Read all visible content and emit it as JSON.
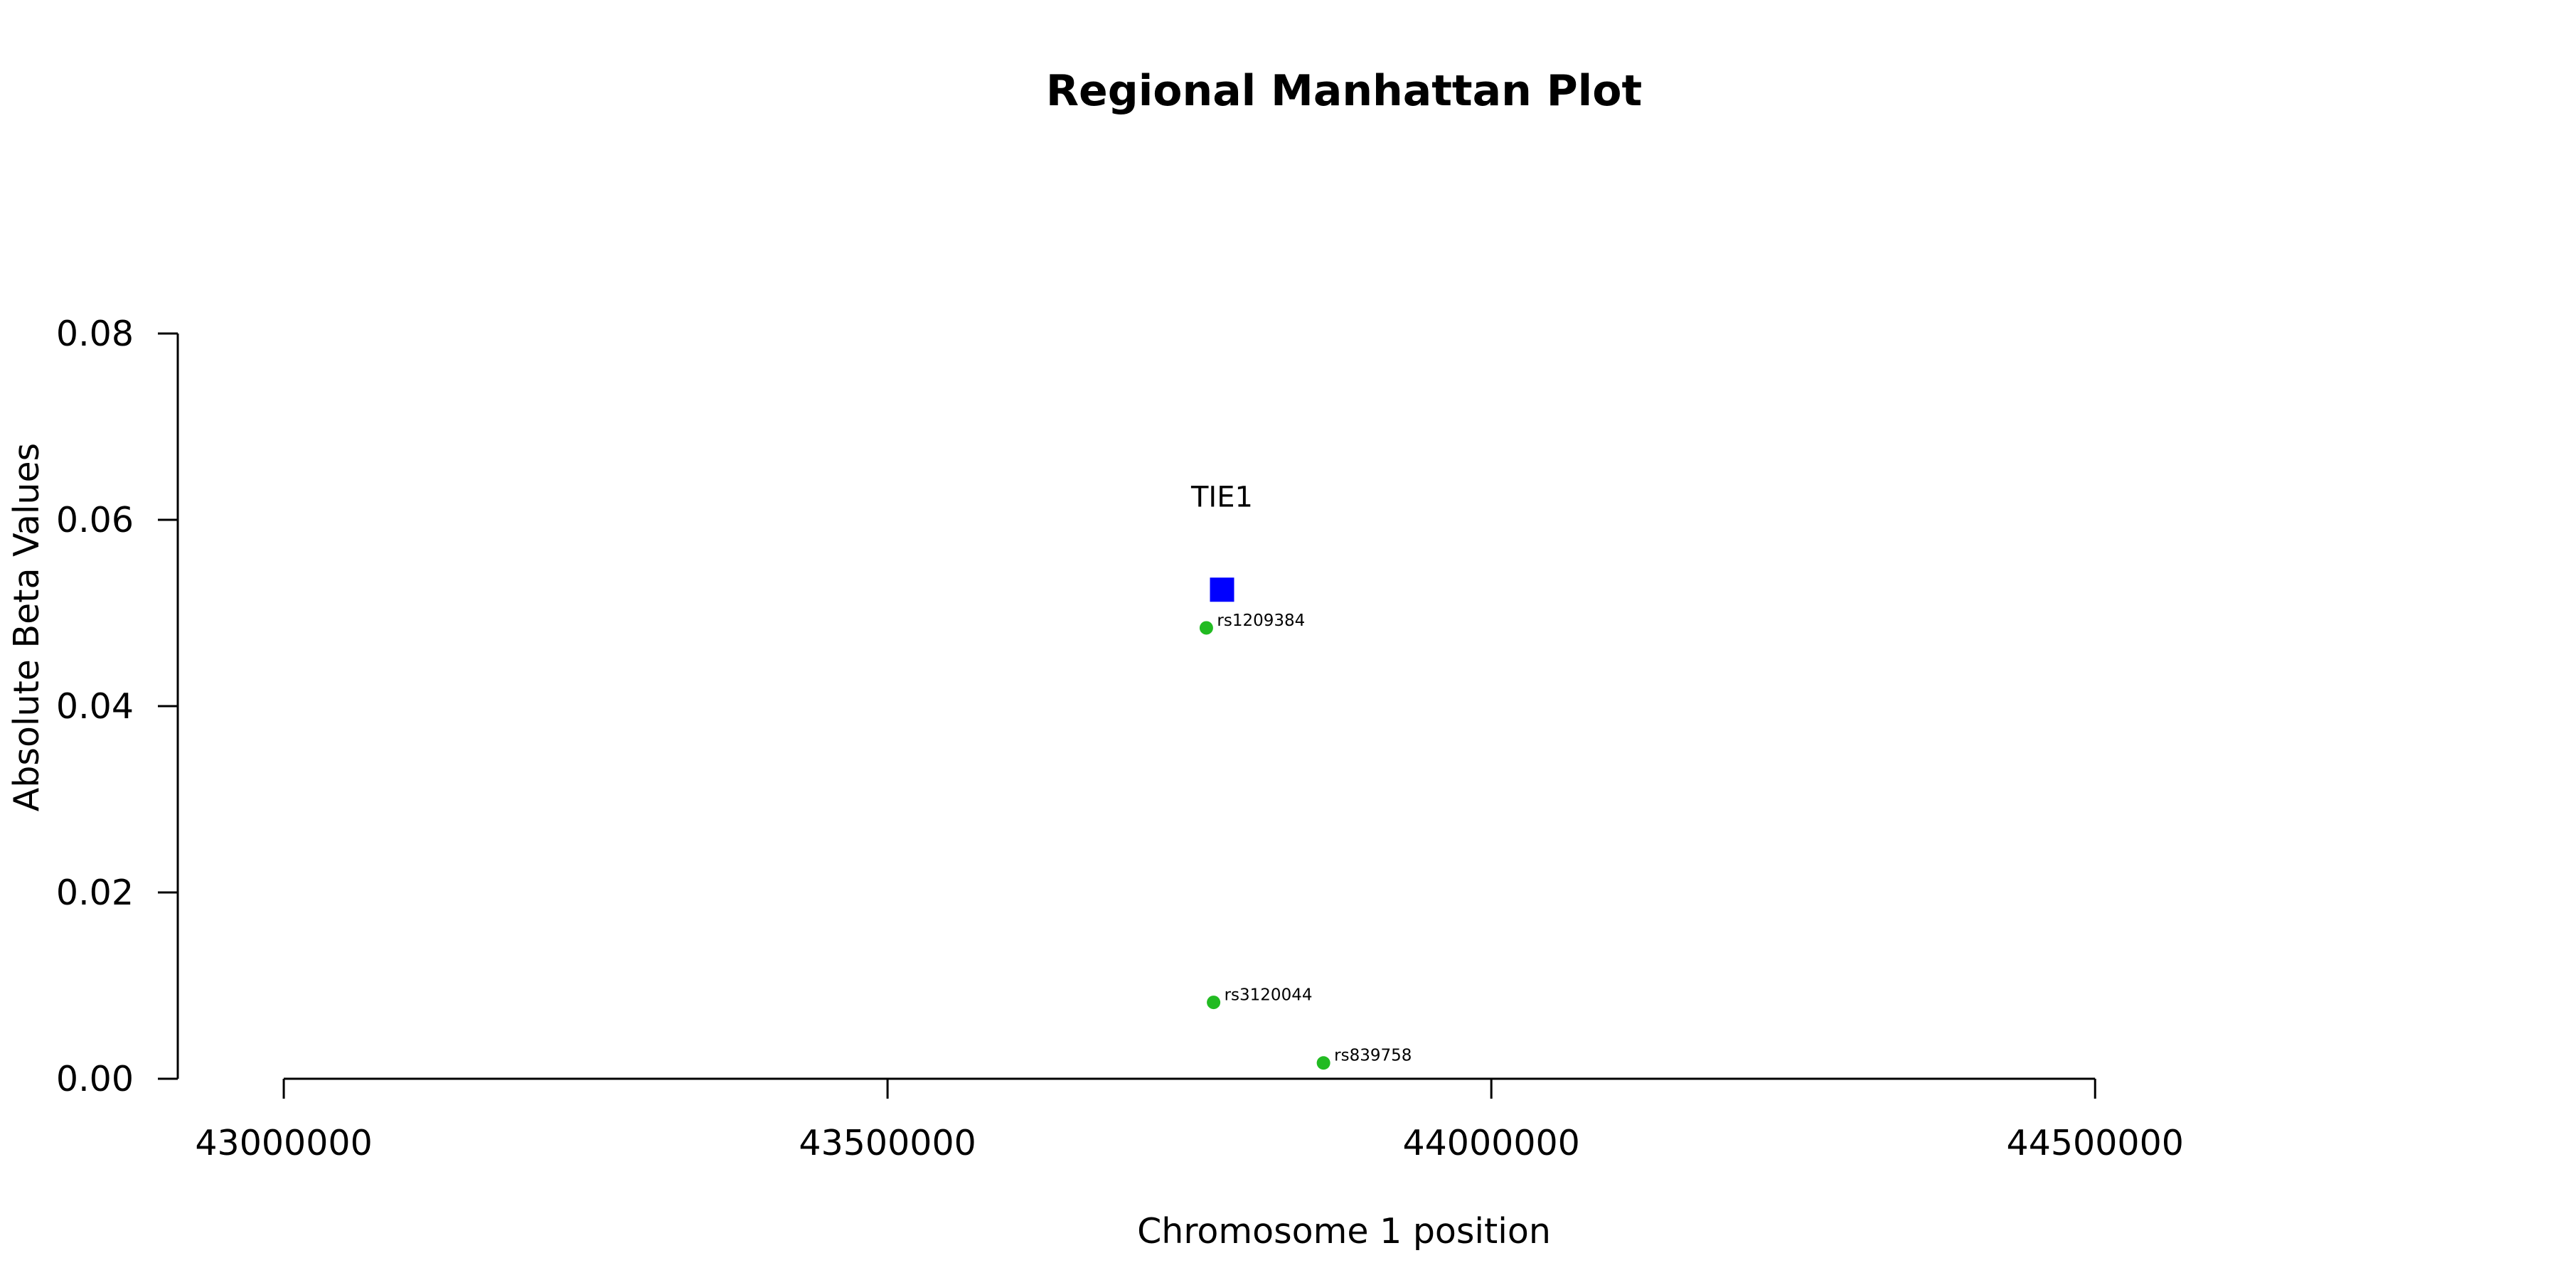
{
  "chart_data": {
    "type": "scatter",
    "title": "Regional Manhattan Plot",
    "xlabel": "Chromosome 1 position",
    "ylabel": "Absolute Beta Values",
    "xlim": [
      42765000,
      44885000
    ],
    "ylim": [
      0,
      0.08
    ],
    "x_ticks": [
      {
        "value": 43000000,
        "label": "43000000"
      },
      {
        "value": 43500000,
        "label": "43500000"
      },
      {
        "value": 44000000,
        "label": "44000000"
      },
      {
        "value": 44500000,
        "label": "44500000"
      }
    ],
    "y_ticks": [
      {
        "value": 0.0,
        "label": "0.00"
      },
      {
        "value": 0.02,
        "label": "0.02"
      },
      {
        "value": 0.04,
        "label": "0.04"
      },
      {
        "value": 0.06,
        "label": "0.06"
      },
      {
        "value": 0.08,
        "label": "0.08"
      }
    ],
    "grid": false,
    "snps": {
      "color": "#22bb22",
      "points": [
        {
          "label": "rs1209384",
          "x": 43764000,
          "y": 0.0484
        },
        {
          "label": "rs3120044",
          "x": 43770000,
          "y": 0.0082
        },
        {
          "label": "rs839758",
          "x": 43861000,
          "y": 0.0017
        }
      ]
    },
    "genes": {
      "color": "#0000ff",
      "points": [
        {
          "label": "TIE1",
          "x": 43777000,
          "y": 0.0525
        }
      ]
    }
  }
}
